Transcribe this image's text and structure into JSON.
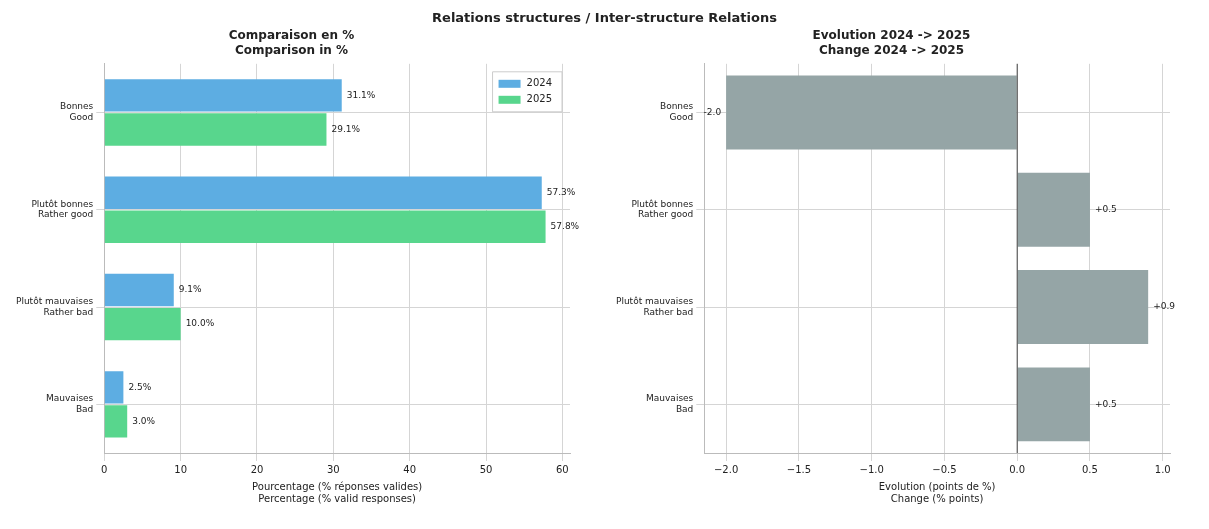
{
  "chart_data": [
    {
      "type": "bar",
      "orientation": "horizontal",
      "title": "Comparaison en %\nComparison in %",
      "xlabel": "Pourcentage (% réponses valides)\nPercentage (% valid responses)",
      "annotations": [
        "Relations structures / Inter-structure Relations"
      ],
      "categories": [
        "Bonnes\nGood",
        "Plutôt bonnes\nRather good",
        "Plutôt mauvaises\nRather bad",
        "Mauvaises\nBad"
      ],
      "series": [
        {
          "name": "2024",
          "color": "#5dade2",
          "values": [
            31.1,
            57.3,
            9.1,
            2.5
          ],
          "value_labels": [
            "31.1%",
            "57.3%",
            "9.1%",
            "2.5%"
          ]
        },
        {
          "name": "2025",
          "color": "#58d68d",
          "values": [
            29.1,
            57.8,
            10.0,
            3.0
          ],
          "value_labels": [
            "29.1%",
            "57.8%",
            "10.0%",
            "3.0%"
          ]
        }
      ],
      "xlim": [
        0,
        61
      ],
      "xticks": [
        0,
        10,
        20,
        30,
        40,
        50,
        60
      ],
      "grid": true,
      "legend": "top right"
    },
    {
      "type": "bar",
      "orientation": "horizontal",
      "title": "Evolution 2024 -> 2025\nChange 2024 -> 2025",
      "xlabel": "Evolution (points de %)\nChange (% points)",
      "categories": [
        "Bonnes\nGood",
        "Plutôt bonnes\nRather good",
        "Plutôt mauvaises\nRather bad",
        "Mauvaises\nBad"
      ],
      "series": [
        {
          "color": "#95a5a6",
          "values": [
            -2.0,
            0.5,
            0.9,
            0.5
          ],
          "value_labels": [
            "-2.0",
            "+0.5",
            "+0.9",
            "+0.5"
          ]
        }
      ],
      "xlim": [
        -2.15,
        1.05
      ],
      "xticks": [
        {
          "value": -2,
          "label": "−2.0"
        },
        {
          "value": -1.5,
          "label": "−1.5"
        },
        {
          "value": -1,
          "label": "−1.0"
        },
        {
          "value": -0.5,
          "label": "−0.5"
        },
        {
          "value": 0,
          "label": "0.0"
        },
        {
          "value": 0.5,
          "label": "0.5"
        },
        {
          "value": 1,
          "label": "1.0"
        }
      ],
      "ref_lines": [
        {
          "axis": "x",
          "value": 0,
          "color": "#444444"
        }
      ],
      "grid": true
    }
  ]
}
